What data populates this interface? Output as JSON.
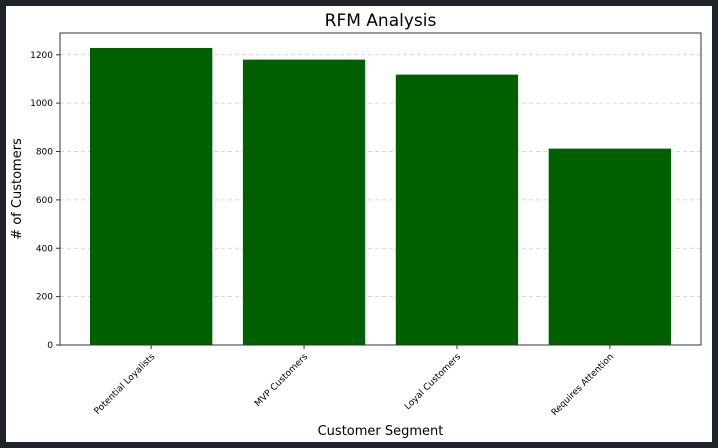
{
  "chart_data": {
    "type": "bar",
    "title": "RFM Analysis",
    "xlabel": "Customer Segment",
    "ylabel": "# of Customers",
    "categories": [
      "Potential Loyalists",
      "MVP Customers",
      "Loyal Customers",
      "Requires Attention"
    ],
    "values": [
      1228,
      1180,
      1118,
      812
    ],
    "ylim": [
      0,
      1290
    ],
    "yticks": [
      0,
      200,
      400,
      600,
      800,
      1000,
      1200
    ],
    "grid": "y-dashed",
    "bar_color": "#006000",
    "grid_color": "#c8c8c8",
    "frame_color": "#333333"
  }
}
